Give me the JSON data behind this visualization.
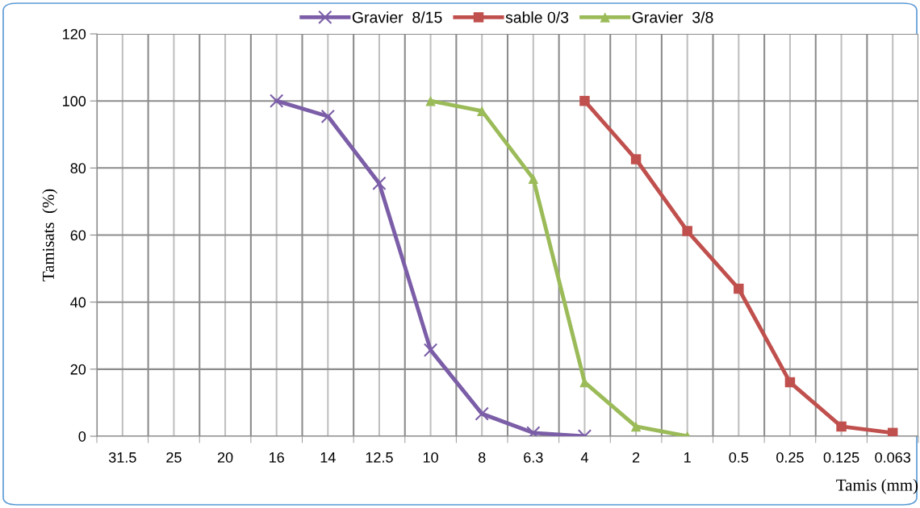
{
  "chart_data": {
    "type": "line",
    "xlabel": "Tamis (mm)",
    "ylabel": "Tamisats  (%)",
    "categories": [
      "31.5",
      "25",
      "20",
      "16",
      "14",
      "12.5",
      "10",
      "8",
      "6.3",
      "4",
      "2",
      "1",
      "0.5",
      "0.25",
      "0.125",
      "0.063"
    ],
    "series": [
      {
        "name": "Gravier  8/15",
        "color": "#7b5ea7",
        "marker": "cross",
        "values": [
          null,
          null,
          null,
          100,
          95.4,
          75.4,
          25.7,
          6.7,
          1,
          0,
          null,
          null,
          null,
          null,
          null,
          null
        ]
      },
      {
        "name": "sable 0/3",
        "color": "#c0504d",
        "marker": "square",
        "values": [
          null,
          null,
          null,
          null,
          null,
          null,
          null,
          null,
          null,
          100,
          82.6,
          61.2,
          44,
          16.1,
          2.9,
          1
        ]
      },
      {
        "name": "Gravier  3/8",
        "color": "#9bbb59",
        "marker": "triangle",
        "values": [
          null,
          null,
          null,
          null,
          null,
          null,
          100,
          97,
          76.8,
          16.1,
          2.9,
          0,
          null,
          null,
          null,
          null
        ]
      }
    ],
    "ylim": [
      0,
      120
    ],
    "yticks": [
      0,
      20,
      40,
      60,
      80,
      100,
      120
    ],
    "grid": true,
    "legend": "top"
  }
}
